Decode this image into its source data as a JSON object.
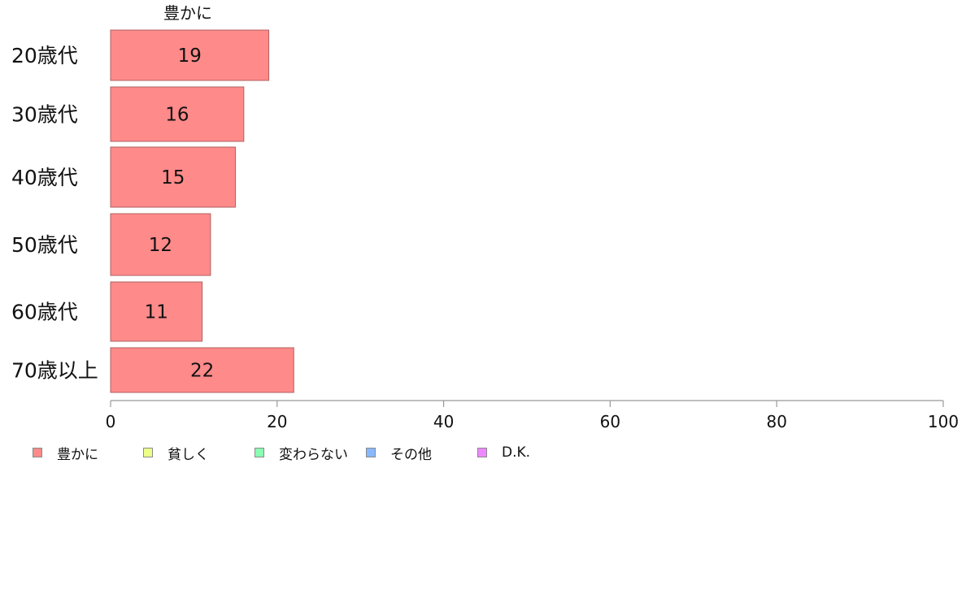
{
  "chart_data": {
    "type": "bar",
    "orientation": "horizontal",
    "stacked": true,
    "categories": [
      "20歳代",
      "30歳代",
      "40歳代",
      "50歳代",
      "60歳代",
      "70歳以上"
    ],
    "series": [
      {
        "name": "豊かに",
        "color": "#ff8a8a",
        "values": [
          19,
          16,
          15,
          12,
          11,
          22
        ]
      }
    ],
    "segment_header": "豊かに",
    "xlim": [
      0,
      100
    ],
    "xticks": [
      "0",
      "20",
      "40",
      "60",
      "80",
      "100"
    ],
    "grid": false,
    "legend_position": "bottom"
  },
  "legend": [
    {
      "label": "豊かに",
      "color": "#ff8a8a"
    },
    {
      "label": "貧しく",
      "color": "#eeff88"
    },
    {
      "label": "変わらない",
      "color": "#88ffb2"
    },
    {
      "label": "その他",
      "color": "#88b8ff"
    },
    {
      "label": "D.K.",
      "color": "#ee88ff"
    }
  ]
}
